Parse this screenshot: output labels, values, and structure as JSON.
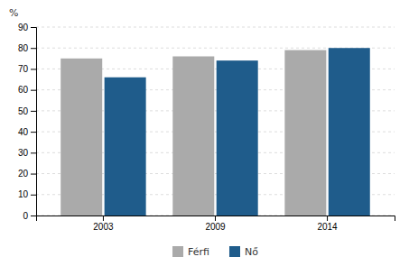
{
  "chart_data": {
    "type": "bar",
    "ylabel": "%",
    "categories": [
      "2003",
      "2009",
      "2014"
    ],
    "series": [
      {
        "name": "Férfi",
        "color": "#aaaaaa",
        "values": [
          75,
          76,
          79
        ]
      },
      {
        "name": "Nő",
        "color": "#1f5c8b",
        "values": [
          66,
          74,
          80
        ]
      }
    ],
    "ylim": [
      0,
      90
    ],
    "yticks": [
      0,
      10,
      20,
      30,
      40,
      50,
      60,
      70,
      80,
      90
    ],
    "grid": true,
    "legend": "bottom"
  }
}
